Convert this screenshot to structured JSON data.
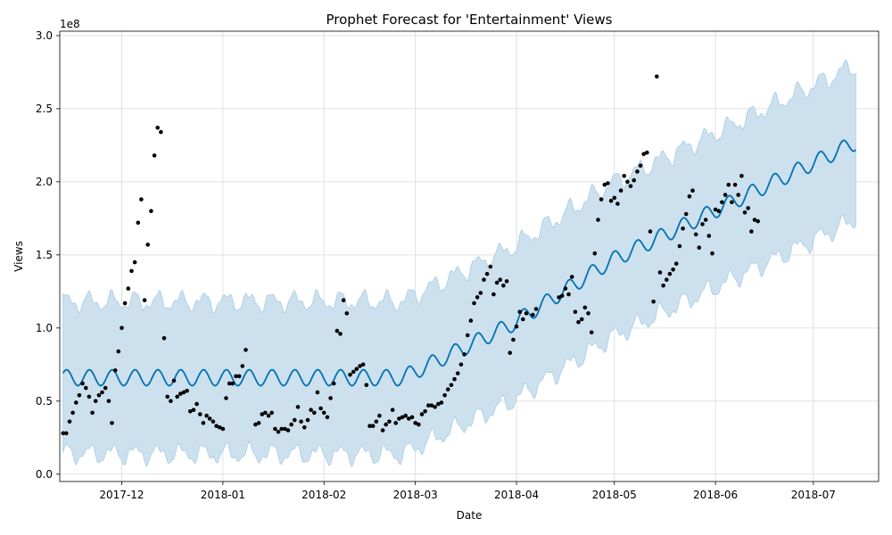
{
  "chart_data": {
    "type": "line",
    "title": "Prophet Forecast for 'Entertainment' Views",
    "xlabel": "Date",
    "ylabel": "Views",
    "y_offset_text": "1e8",
    "xlim": [
      "2017-11-12",
      "2018-07-21"
    ],
    "ylim": [
      -0.05,
      3.03
    ],
    "y_unit_multiplier": 100000000,
    "grid": true,
    "x_ticks": [
      {
        "date": "2017-12-01",
        "label": "2017-12"
      },
      {
        "date": "2018-01-01",
        "label": "2018-01"
      },
      {
        "date": "2018-02-01",
        "label": "2018-02"
      },
      {
        "date": "2018-03-01",
        "label": "2018-03"
      },
      {
        "date": "2018-04-01",
        "label": "2018-04"
      },
      {
        "date": "2018-05-01",
        "label": "2018-05"
      },
      {
        "date": "2018-06-01",
        "label": "2018-06"
      },
      {
        "date": "2018-07-01",
        "label": "2018-07"
      }
    ],
    "y_ticks": [
      {
        "value": 0.0,
        "label": "0.0"
      },
      {
        "value": 0.5,
        "label": "0.5"
      },
      {
        "value": 1.0,
        "label": "1.0"
      },
      {
        "value": 1.5,
        "label": "1.5"
      },
      {
        "value": 2.0,
        "label": "2.0"
      },
      {
        "value": 2.5,
        "label": "2.5"
      },
      {
        "value": 3.0,
        "label": "3.0"
      }
    ],
    "colors": {
      "forecast": "#0072B2",
      "band": "#cce0ee",
      "band_edge": "#a9cde5",
      "points": "#000000",
      "grid": "#e0e0e0"
    },
    "forecast": {
      "start": "2017-11-13",
      "end": "2018-07-14",
      "trend_knots": [
        {
          "date": "2017-11-13",
          "value": 0.66
        },
        {
          "date": "2018-02-25",
          "value": 0.66
        },
        {
          "date": "2018-03-31",
          "value": 1.03
        },
        {
          "date": "2018-04-30",
          "value": 1.46
        },
        {
          "date": "2018-07-14",
          "value": 2.27
        }
      ],
      "weekly_amplitude": 0.055,
      "band_halfwidth_start": 0.52,
      "band_halfwidth_end": 0.53
    },
    "points": [
      {
        "date": "2017-11-13",
        "y": 0.28
      },
      {
        "date": "2017-11-14",
        "y": 0.28
      },
      {
        "date": "2017-11-15",
        "y": 0.36
      },
      {
        "date": "2017-11-16",
        "y": 0.42
      },
      {
        "date": "2017-11-17",
        "y": 0.49
      },
      {
        "date": "2017-11-18",
        "y": 0.54
      },
      {
        "date": "2017-11-19",
        "y": 0.62
      },
      {
        "date": "2017-11-20",
        "y": 0.59
      },
      {
        "date": "2017-11-21",
        "y": 0.53
      },
      {
        "date": "2017-11-22",
        "y": 0.42
      },
      {
        "date": "2017-11-23",
        "y": 0.5
      },
      {
        "date": "2017-11-24",
        "y": 0.54
      },
      {
        "date": "2017-11-25",
        "y": 0.56
      },
      {
        "date": "2017-11-26",
        "y": 0.59
      },
      {
        "date": "2017-11-27",
        "y": 0.5
      },
      {
        "date": "2017-11-28",
        "y": 0.35
      },
      {
        "date": "2017-11-29",
        "y": 0.71
      },
      {
        "date": "2017-11-30",
        "y": 0.84
      },
      {
        "date": "2017-12-01",
        "y": 1.0
      },
      {
        "date": "2017-12-02",
        "y": 1.17
      },
      {
        "date": "2017-12-03",
        "y": 1.27
      },
      {
        "date": "2017-12-04",
        "y": 1.39
      },
      {
        "date": "2017-12-05",
        "y": 1.45
      },
      {
        "date": "2017-12-06",
        "y": 1.72
      },
      {
        "date": "2017-12-07",
        "y": 1.88
      },
      {
        "date": "2017-12-08",
        "y": 1.19
      },
      {
        "date": "2017-12-09",
        "y": 1.57
      },
      {
        "date": "2017-12-10",
        "y": 1.8
      },
      {
        "date": "2017-12-11",
        "y": 2.18
      },
      {
        "date": "2017-12-12",
        "y": 2.37
      },
      {
        "date": "2017-12-13",
        "y": 2.34
      },
      {
        "date": "2017-12-14",
        "y": 0.93
      },
      {
        "date": "2017-12-15",
        "y": 0.53
      },
      {
        "date": "2017-12-16",
        "y": 0.5
      },
      {
        "date": "2017-12-17",
        "y": 0.64
      },
      {
        "date": "2017-12-18",
        "y": 0.53
      },
      {
        "date": "2017-12-19",
        "y": 0.55
      },
      {
        "date": "2017-12-20",
        "y": 0.56
      },
      {
        "date": "2017-12-21",
        "y": 0.57
      },
      {
        "date": "2017-12-22",
        "y": 0.43
      },
      {
        "date": "2017-12-23",
        "y": 0.44
      },
      {
        "date": "2017-12-24",
        "y": 0.48
      },
      {
        "date": "2017-12-25",
        "y": 0.41
      },
      {
        "date": "2017-12-26",
        "y": 0.35
      },
      {
        "date": "2017-12-27",
        "y": 0.4
      },
      {
        "date": "2017-12-28",
        "y": 0.38
      },
      {
        "date": "2017-12-29",
        "y": 0.36
      },
      {
        "date": "2017-12-30",
        "y": 0.33
      },
      {
        "date": "2017-12-31",
        "y": 0.32
      },
      {
        "date": "2018-01-01",
        "y": 0.31
      },
      {
        "date": "2018-01-02",
        "y": 0.52
      },
      {
        "date": "2018-01-03",
        "y": 0.62
      },
      {
        "date": "2018-01-04",
        "y": 0.62
      },
      {
        "date": "2018-01-05",
        "y": 0.67
      },
      {
        "date": "2018-01-06",
        "y": 0.67
      },
      {
        "date": "2018-01-07",
        "y": 0.74
      },
      {
        "date": "2018-01-08",
        "y": 0.85
      },
      {
        "date": "2018-01-11",
        "y": 0.34
      },
      {
        "date": "2018-01-12",
        "y": 0.35
      },
      {
        "date": "2018-01-13",
        "y": 0.41
      },
      {
        "date": "2018-01-14",
        "y": 0.42
      },
      {
        "date": "2018-01-15",
        "y": 0.4
      },
      {
        "date": "2018-01-16",
        "y": 0.42
      },
      {
        "date": "2018-01-17",
        "y": 0.31
      },
      {
        "date": "2018-01-18",
        "y": 0.29
      },
      {
        "date": "2018-01-19",
        "y": 0.31
      },
      {
        "date": "2018-01-20",
        "y": 0.31
      },
      {
        "date": "2018-01-21",
        "y": 0.3
      },
      {
        "date": "2018-01-22",
        "y": 0.34
      },
      {
        "date": "2018-01-23",
        "y": 0.37
      },
      {
        "date": "2018-01-24",
        "y": 0.46
      },
      {
        "date": "2018-01-25",
        "y": 0.36
      },
      {
        "date": "2018-01-26",
        "y": 0.32
      },
      {
        "date": "2018-01-27",
        "y": 0.37
      },
      {
        "date": "2018-01-28",
        "y": 0.44
      },
      {
        "date": "2018-01-29",
        "y": 0.42
      },
      {
        "date": "2018-01-30",
        "y": 0.56
      },
      {
        "date": "2018-01-31",
        "y": 0.45
      },
      {
        "date": "2018-02-01",
        "y": 0.42
      },
      {
        "date": "2018-02-02",
        "y": 0.39
      },
      {
        "date": "2018-02-03",
        "y": 0.52
      },
      {
        "date": "2018-02-04",
        "y": 0.62
      },
      {
        "date": "2018-02-05",
        "y": 0.98
      },
      {
        "date": "2018-02-06",
        "y": 0.96
      },
      {
        "date": "2018-02-07",
        "y": 1.19
      },
      {
        "date": "2018-02-08",
        "y": 1.1
      },
      {
        "date": "2018-02-09",
        "y": 0.68
      },
      {
        "date": "2018-02-10",
        "y": 0.7
      },
      {
        "date": "2018-02-11",
        "y": 0.72
      },
      {
        "date": "2018-02-12",
        "y": 0.74
      },
      {
        "date": "2018-02-13",
        "y": 0.75
      },
      {
        "date": "2018-02-14",
        "y": 0.61
      },
      {
        "date": "2018-02-15",
        "y": 0.33
      },
      {
        "date": "2018-02-16",
        "y": 0.33
      },
      {
        "date": "2018-02-17",
        "y": 0.36
      },
      {
        "date": "2018-02-18",
        "y": 0.4
      },
      {
        "date": "2018-02-19",
        "y": 0.3
      },
      {
        "date": "2018-02-20",
        "y": 0.34
      },
      {
        "date": "2018-02-21",
        "y": 0.36
      },
      {
        "date": "2018-02-22",
        "y": 0.44
      },
      {
        "date": "2018-02-23",
        "y": 0.35
      },
      {
        "date": "2018-02-24",
        "y": 0.38
      },
      {
        "date": "2018-02-25",
        "y": 0.39
      },
      {
        "date": "2018-02-26",
        "y": 0.4
      },
      {
        "date": "2018-02-27",
        "y": 0.38
      },
      {
        "date": "2018-02-28",
        "y": 0.39
      },
      {
        "date": "2018-03-01",
        "y": 0.35
      },
      {
        "date": "2018-03-02",
        "y": 0.34
      },
      {
        "date": "2018-03-03",
        "y": 0.41
      },
      {
        "date": "2018-03-04",
        "y": 0.43
      },
      {
        "date": "2018-03-05",
        "y": 0.47
      },
      {
        "date": "2018-03-06",
        "y": 0.47
      },
      {
        "date": "2018-03-07",
        "y": 0.46
      },
      {
        "date": "2018-03-08",
        "y": 0.48
      },
      {
        "date": "2018-03-09",
        "y": 0.49
      },
      {
        "date": "2018-03-10",
        "y": 0.54
      },
      {
        "date": "2018-03-11",
        "y": 0.58
      },
      {
        "date": "2018-03-12",
        "y": 0.61
      },
      {
        "date": "2018-03-13",
        "y": 0.65
      },
      {
        "date": "2018-03-14",
        "y": 0.69
      },
      {
        "date": "2018-03-15",
        "y": 0.75
      },
      {
        "date": "2018-03-16",
        "y": 0.82
      },
      {
        "date": "2018-03-17",
        "y": 0.95
      },
      {
        "date": "2018-03-18",
        "y": 1.05
      },
      {
        "date": "2018-03-19",
        "y": 1.17
      },
      {
        "date": "2018-03-20",
        "y": 1.21
      },
      {
        "date": "2018-03-21",
        "y": 1.24
      },
      {
        "date": "2018-03-22",
        "y": 1.33
      },
      {
        "date": "2018-03-23",
        "y": 1.37
      },
      {
        "date": "2018-03-24",
        "y": 1.42
      },
      {
        "date": "2018-03-25",
        "y": 1.23
      },
      {
        "date": "2018-03-26",
        "y": 1.31
      },
      {
        "date": "2018-03-27",
        "y": 1.33
      },
      {
        "date": "2018-03-28",
        "y": 1.29
      },
      {
        "date": "2018-03-29",
        "y": 1.32
      },
      {
        "date": "2018-03-30",
        "y": 0.83
      },
      {
        "date": "2018-03-31",
        "y": 0.92
      },
      {
        "date": "2018-04-01",
        "y": 1.01
      },
      {
        "date": "2018-04-02",
        "y": 1.11
      },
      {
        "date": "2018-04-03",
        "y": 1.06
      },
      {
        "date": "2018-04-04",
        "y": 1.1
      },
      {
        "date": "2018-04-06",
        "y": 1.09
      },
      {
        "date": "2018-04-07",
        "y": 1.13
      },
      {
        "date": "2018-04-14",
        "y": 1.21
      },
      {
        "date": "2018-04-15",
        "y": 1.22
      },
      {
        "date": "2018-04-16",
        "y": 1.27
      },
      {
        "date": "2018-04-17",
        "y": 1.23
      },
      {
        "date": "2018-04-18",
        "y": 1.35
      },
      {
        "date": "2018-04-19",
        "y": 1.11
      },
      {
        "date": "2018-04-20",
        "y": 1.04
      },
      {
        "date": "2018-04-21",
        "y": 1.06
      },
      {
        "date": "2018-04-22",
        "y": 1.14
      },
      {
        "date": "2018-04-23",
        "y": 1.1
      },
      {
        "date": "2018-04-24",
        "y": 0.97
      },
      {
        "date": "2018-04-25",
        "y": 1.51
      },
      {
        "date": "2018-04-26",
        "y": 1.74
      },
      {
        "date": "2018-04-27",
        "y": 1.88
      },
      {
        "date": "2018-04-28",
        "y": 1.98
      },
      {
        "date": "2018-04-29",
        "y": 1.99
      },
      {
        "date": "2018-04-30",
        "y": 1.87
      },
      {
        "date": "2018-05-01",
        "y": 1.89
      },
      {
        "date": "2018-05-02",
        "y": 1.85
      },
      {
        "date": "2018-05-03",
        "y": 1.94
      },
      {
        "date": "2018-05-04",
        "y": 2.04
      },
      {
        "date": "2018-05-05",
        "y": 2.0
      },
      {
        "date": "2018-05-06",
        "y": 1.97
      },
      {
        "date": "2018-05-07",
        "y": 2.01
      },
      {
        "date": "2018-05-08",
        "y": 2.07
      },
      {
        "date": "2018-05-09",
        "y": 2.11
      },
      {
        "date": "2018-05-10",
        "y": 2.19
      },
      {
        "date": "2018-05-11",
        "y": 2.2
      },
      {
        "date": "2018-05-12",
        "y": 1.66
      },
      {
        "date": "2018-05-13",
        "y": 1.18
      },
      {
        "date": "2018-05-14",
        "y": 2.72
      },
      {
        "date": "2018-05-15",
        "y": 1.38
      },
      {
        "date": "2018-05-16",
        "y": 1.29
      },
      {
        "date": "2018-05-17",
        "y": 1.33
      },
      {
        "date": "2018-05-18",
        "y": 1.37
      },
      {
        "date": "2018-05-19",
        "y": 1.4
      },
      {
        "date": "2018-05-20",
        "y": 1.44
      },
      {
        "date": "2018-05-21",
        "y": 1.56
      },
      {
        "date": "2018-05-22",
        "y": 1.68
      },
      {
        "date": "2018-05-23",
        "y": 1.78
      },
      {
        "date": "2018-05-24",
        "y": 1.9
      },
      {
        "date": "2018-05-25",
        "y": 1.94
      },
      {
        "date": "2018-05-26",
        "y": 1.64
      },
      {
        "date": "2018-05-27",
        "y": 1.55
      },
      {
        "date": "2018-05-28",
        "y": 1.71
      },
      {
        "date": "2018-05-29",
        "y": 1.74
      },
      {
        "date": "2018-05-30",
        "y": 1.63
      },
      {
        "date": "2018-05-31",
        "y": 1.51
      },
      {
        "date": "2018-06-01",
        "y": 1.81
      },
      {
        "date": "2018-06-02",
        "y": 1.8
      },
      {
        "date": "2018-06-03",
        "y": 1.86
      },
      {
        "date": "2018-06-04",
        "y": 1.91
      },
      {
        "date": "2018-06-05",
        "y": 1.98
      },
      {
        "date": "2018-06-06",
        "y": 1.86
      },
      {
        "date": "2018-06-07",
        "y": 1.98
      },
      {
        "date": "2018-06-08",
        "y": 1.91
      },
      {
        "date": "2018-06-09",
        "y": 2.04
      },
      {
        "date": "2018-06-10",
        "y": 1.79
      },
      {
        "date": "2018-06-11",
        "y": 1.82
      },
      {
        "date": "2018-06-12",
        "y": 1.66
      },
      {
        "date": "2018-06-13",
        "y": 1.74
      },
      {
        "date": "2018-06-14",
        "y": 1.73
      }
    ]
  }
}
